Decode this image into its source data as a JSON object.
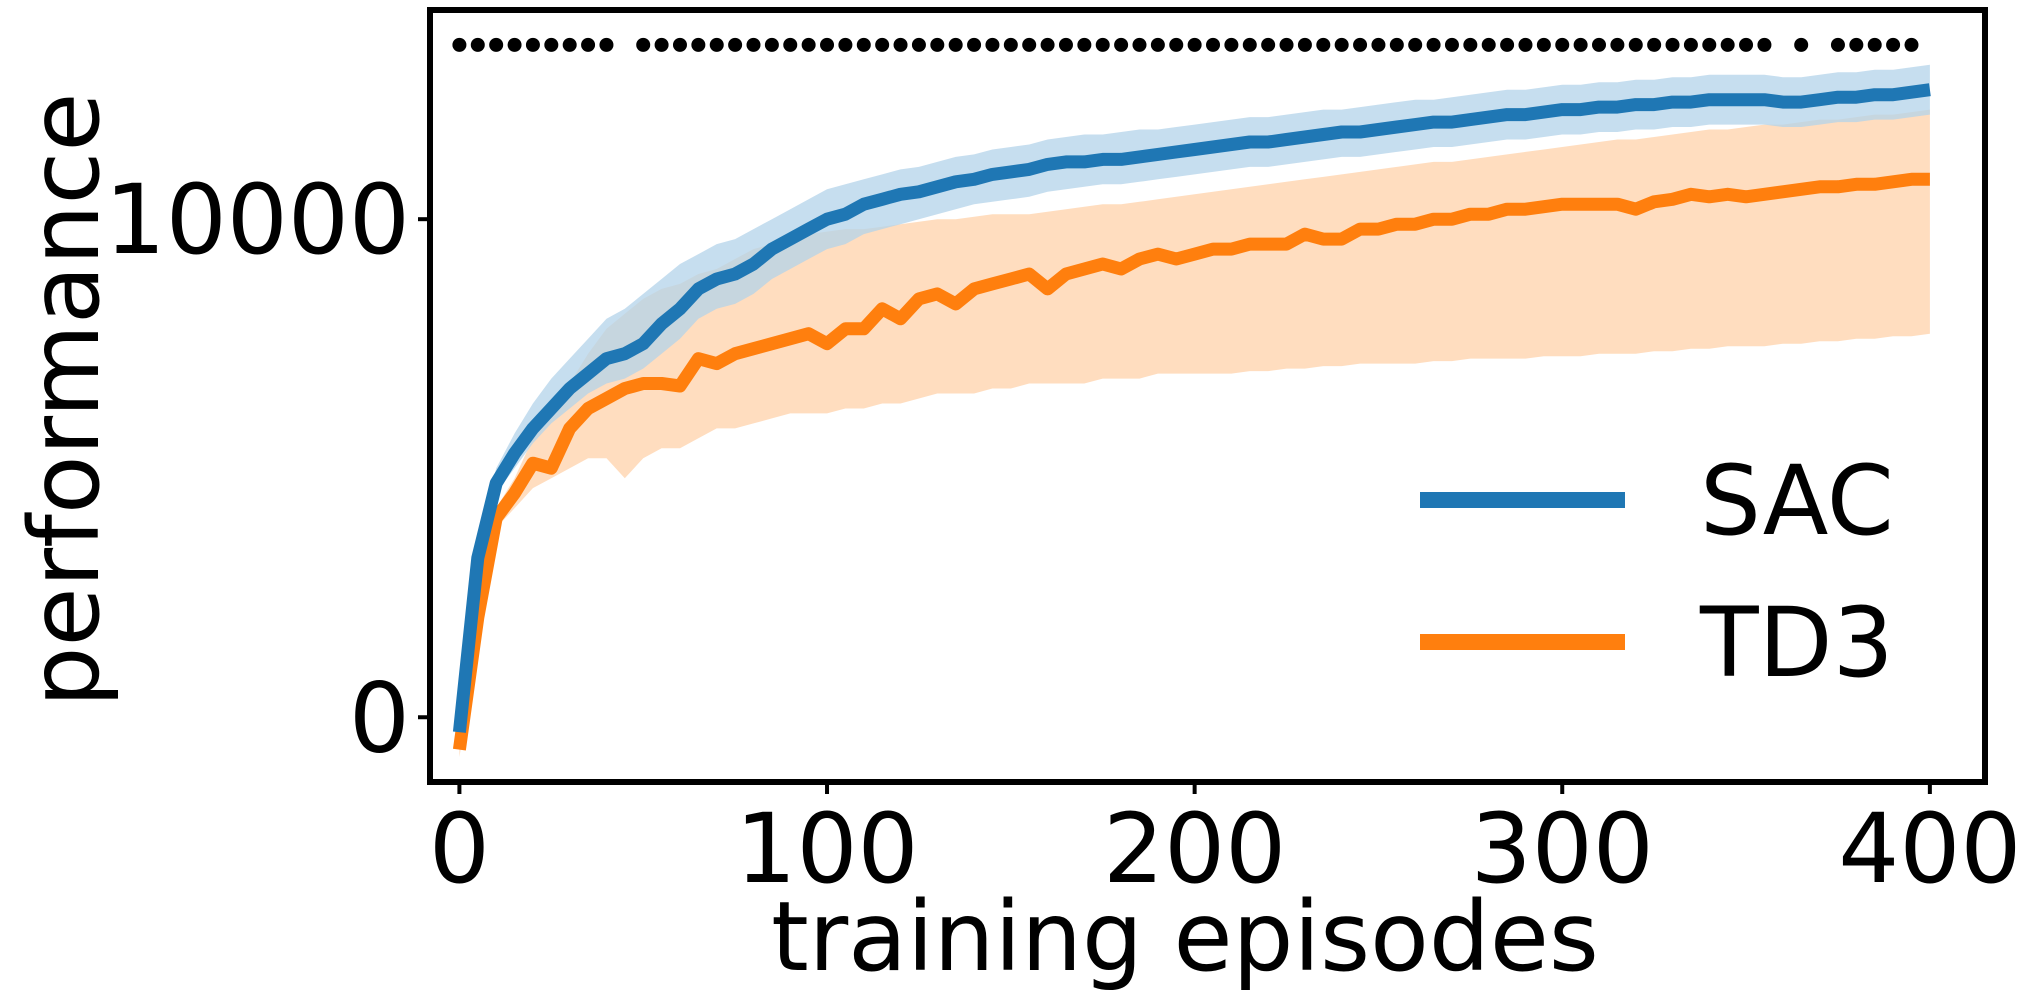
{
  "chart_data": {
    "type": "line",
    "title": "",
    "xlabel": "training episodes",
    "ylabel": "performance",
    "xlim": [
      -8,
      415
    ],
    "ylim": [
      -1300,
      14200
    ],
    "xticks": [
      0,
      100,
      200,
      300,
      400
    ],
    "yticks": [
      0,
      10000
    ],
    "grid": false,
    "legend_position": "lower-right",
    "significance_marker_level": 13500,
    "significance_episodes": [
      0,
      5,
      10,
      15,
      20,
      25,
      30,
      35,
      40,
      50,
      55,
      60,
      65,
      70,
      75,
      80,
      85,
      90,
      95,
      100,
      105,
      110,
      115,
      120,
      125,
      130,
      135,
      140,
      145,
      150,
      155,
      160,
      165,
      170,
      175,
      180,
      185,
      190,
      195,
      200,
      205,
      210,
      215,
      220,
      225,
      230,
      235,
      240,
      245,
      250,
      255,
      260,
      265,
      270,
      275,
      280,
      285,
      290,
      295,
      300,
      305,
      310,
      315,
      320,
      325,
      330,
      335,
      340,
      345,
      350,
      355,
      365,
      375,
      380,
      385,
      390,
      395
    ],
    "x": [
      0,
      5,
      10,
      15,
      20,
      25,
      30,
      35,
      40,
      45,
      50,
      55,
      60,
      65,
      70,
      75,
      80,
      85,
      90,
      95,
      100,
      105,
      110,
      115,
      120,
      125,
      130,
      135,
      140,
      145,
      150,
      155,
      160,
      165,
      170,
      175,
      180,
      185,
      190,
      195,
      200,
      205,
      210,
      215,
      220,
      225,
      230,
      235,
      240,
      245,
      250,
      255,
      260,
      265,
      270,
      275,
      280,
      285,
      290,
      295,
      300,
      305,
      310,
      315,
      320,
      325,
      330,
      335,
      340,
      345,
      350,
      355,
      360,
      365,
      370,
      375,
      380,
      385,
      390,
      395,
      400
    ],
    "series": [
      {
        "name": "SAC",
        "color": "#1f77b4",
        "band_color": "#b3d3ea",
        "values": [
          -300,
          3200,
          4700,
          5300,
          5800,
          6200,
          6600,
          6900,
          7200,
          7300,
          7500,
          7900,
          8200,
          8600,
          8800,
          8900,
          9100,
          9400,
          9600,
          9800,
          10000,
          10100,
          10300,
          10400,
          10500,
          10550,
          10650,
          10750,
          10800,
          10900,
          10950,
          11000,
          11100,
          11150,
          11150,
          11200,
          11200,
          11250,
          11300,
          11350,
          11400,
          11450,
          11500,
          11550,
          11550,
          11600,
          11650,
          11700,
          11750,
          11750,
          11800,
          11850,
          11900,
          11950,
          11950,
          12000,
          12050,
          12100,
          12100,
          12150,
          12200,
          12200,
          12250,
          12250,
          12300,
          12300,
          12350,
          12350,
          12400,
          12400,
          12400,
          12400,
          12350,
          12350,
          12400,
          12450,
          12450,
          12500,
          12500,
          12550,
          12600
        ],
        "lower": [
          -400,
          2900,
          4500,
          5000,
          5500,
          5900,
          6200,
          6500,
          6700,
          6800,
          7000,
          7300,
          7600,
          8000,
          8200,
          8300,
          8500,
          8800,
          9000,
          9200,
          9400,
          9500,
          9700,
          9800,
          9900,
          10000,
          10100,
          10200,
          10300,
          10350,
          10400,
          10450,
          10550,
          10600,
          10650,
          10700,
          10700,
          10750,
          10800,
          10850,
          10900,
          10950,
          11000,
          11050,
          11050,
          11100,
          11150,
          11200,
          11250,
          11250,
          11300,
          11350,
          11400,
          11450,
          11450,
          11500,
          11550,
          11600,
          11600,
          11650,
          11700,
          11700,
          11750,
          11750,
          11800,
          11800,
          11850,
          11850,
          11900,
          11900,
          11900,
          11900,
          11850,
          11850,
          11900,
          11950,
          11950,
          12000,
          12000,
          12050,
          12100
        ],
        "upper": [
          -200,
          3500,
          5000,
          5700,
          6300,
          6800,
          7200,
          7600,
          8000,
          8200,
          8500,
          8800,
          9100,
          9300,
          9500,
          9600,
          9800,
          10000,
          10200,
          10400,
          10600,
          10700,
          10800,
          10900,
          11000,
          11050,
          11150,
          11250,
          11300,
          11400,
          11450,
          11500,
          11600,
          11650,
          11700,
          11700,
          11750,
          11800,
          11800,
          11850,
          11900,
          11950,
          12000,
          12050,
          12050,
          12100,
          12150,
          12200,
          12200,
          12250,
          12300,
          12350,
          12400,
          12400,
          12450,
          12500,
          12550,
          12600,
          12600,
          12650,
          12700,
          12700,
          12750,
          12750,
          12800,
          12800,
          12850,
          12850,
          12900,
          12900,
          12900,
          12900,
          12850,
          12850,
          12900,
          12950,
          12950,
          13000,
          13000,
          13050,
          13100
        ]
      },
      {
        "name": "TD3",
        "color": "#ff7f0e",
        "band_color": "#ffd2aa",
        "values": [
          -650,
          2000,
          4000,
          4500,
          5100,
          5000,
          5800,
          6200,
          6400,
          6600,
          6700,
          6700,
          6650,
          7200,
          7100,
          7300,
          7400,
          7500,
          7600,
          7700,
          7500,
          7800,
          7800,
          8200,
          8000,
          8400,
          8500,
          8300,
          8600,
          8700,
          8800,
          8900,
          8600,
          8900,
          9000,
          9100,
          9000,
          9200,
          9300,
          9200,
          9300,
          9400,
          9400,
          9500,
          9500,
          9500,
          9700,
          9600,
          9600,
          9800,
          9800,
          9900,
          9900,
          10000,
          10000,
          10100,
          10100,
          10200,
          10200,
          10250,
          10300,
          10300,
          10300,
          10300,
          10200,
          10350,
          10400,
          10500,
          10450,
          10500,
          10450,
          10500,
          10550,
          10600,
          10650,
          10650,
          10700,
          10700,
          10750,
          10800,
          10800
        ],
        "lower": [
          -800,
          1500,
          3800,
          4200,
          4600,
          4800,
          5000,
          5200,
          5200,
          4800,
          5200,
          5400,
          5400,
          5600,
          5800,
          5800,
          5900,
          6000,
          6100,
          6100,
          6100,
          6200,
          6200,
          6300,
          6300,
          6400,
          6500,
          6500,
          6500,
          6600,
          6600,
          6700,
          6700,
          6700,
          6700,
          6800,
          6800,
          6800,
          6900,
          6900,
          6900,
          6900,
          6900,
          6950,
          6950,
          7000,
          7000,
          7050,
          7050,
          7100,
          7100,
          7100,
          7100,
          7150,
          7150,
          7200,
          7200,
          7200,
          7200,
          7250,
          7250,
          7250,
          7300,
          7300,
          7300,
          7350,
          7350,
          7400,
          7400,
          7450,
          7450,
          7450,
          7500,
          7500,
          7550,
          7550,
          7600,
          7600,
          7650,
          7650,
          7700
        ],
        "upper": [
          -500,
          2400,
          4200,
          4800,
          5600,
          6000,
          6700,
          7300,
          7800,
          8100,
          8400,
          8600,
          8700,
          8900,
          9000,
          9200,
          9400,
          9500,
          9600,
          9700,
          9750,
          9800,
          9800,
          9850,
          9900,
          9950,
          10000,
          10000,
          10050,
          10100,
          10100,
          10100,
          10150,
          10200,
          10250,
          10300,
          10300,
          10350,
          10400,
          10450,
          10500,
          10550,
          10600,
          10650,
          10700,
          10750,
          10800,
          10850,
          10900,
          10950,
          11000,
          11050,
          11100,
          11150,
          11150,
          11200,
          11250,
          11300,
          11350,
          11400,
          11450,
          11500,
          11550,
          11600,
          11600,
          11650,
          11700,
          11750,
          11800,
          11800,
          11850,
          11900,
          11900,
          11950,
          12000,
          12000,
          12050,
          12100,
          12100,
          12150,
          12200
        ]
      }
    ]
  }
}
